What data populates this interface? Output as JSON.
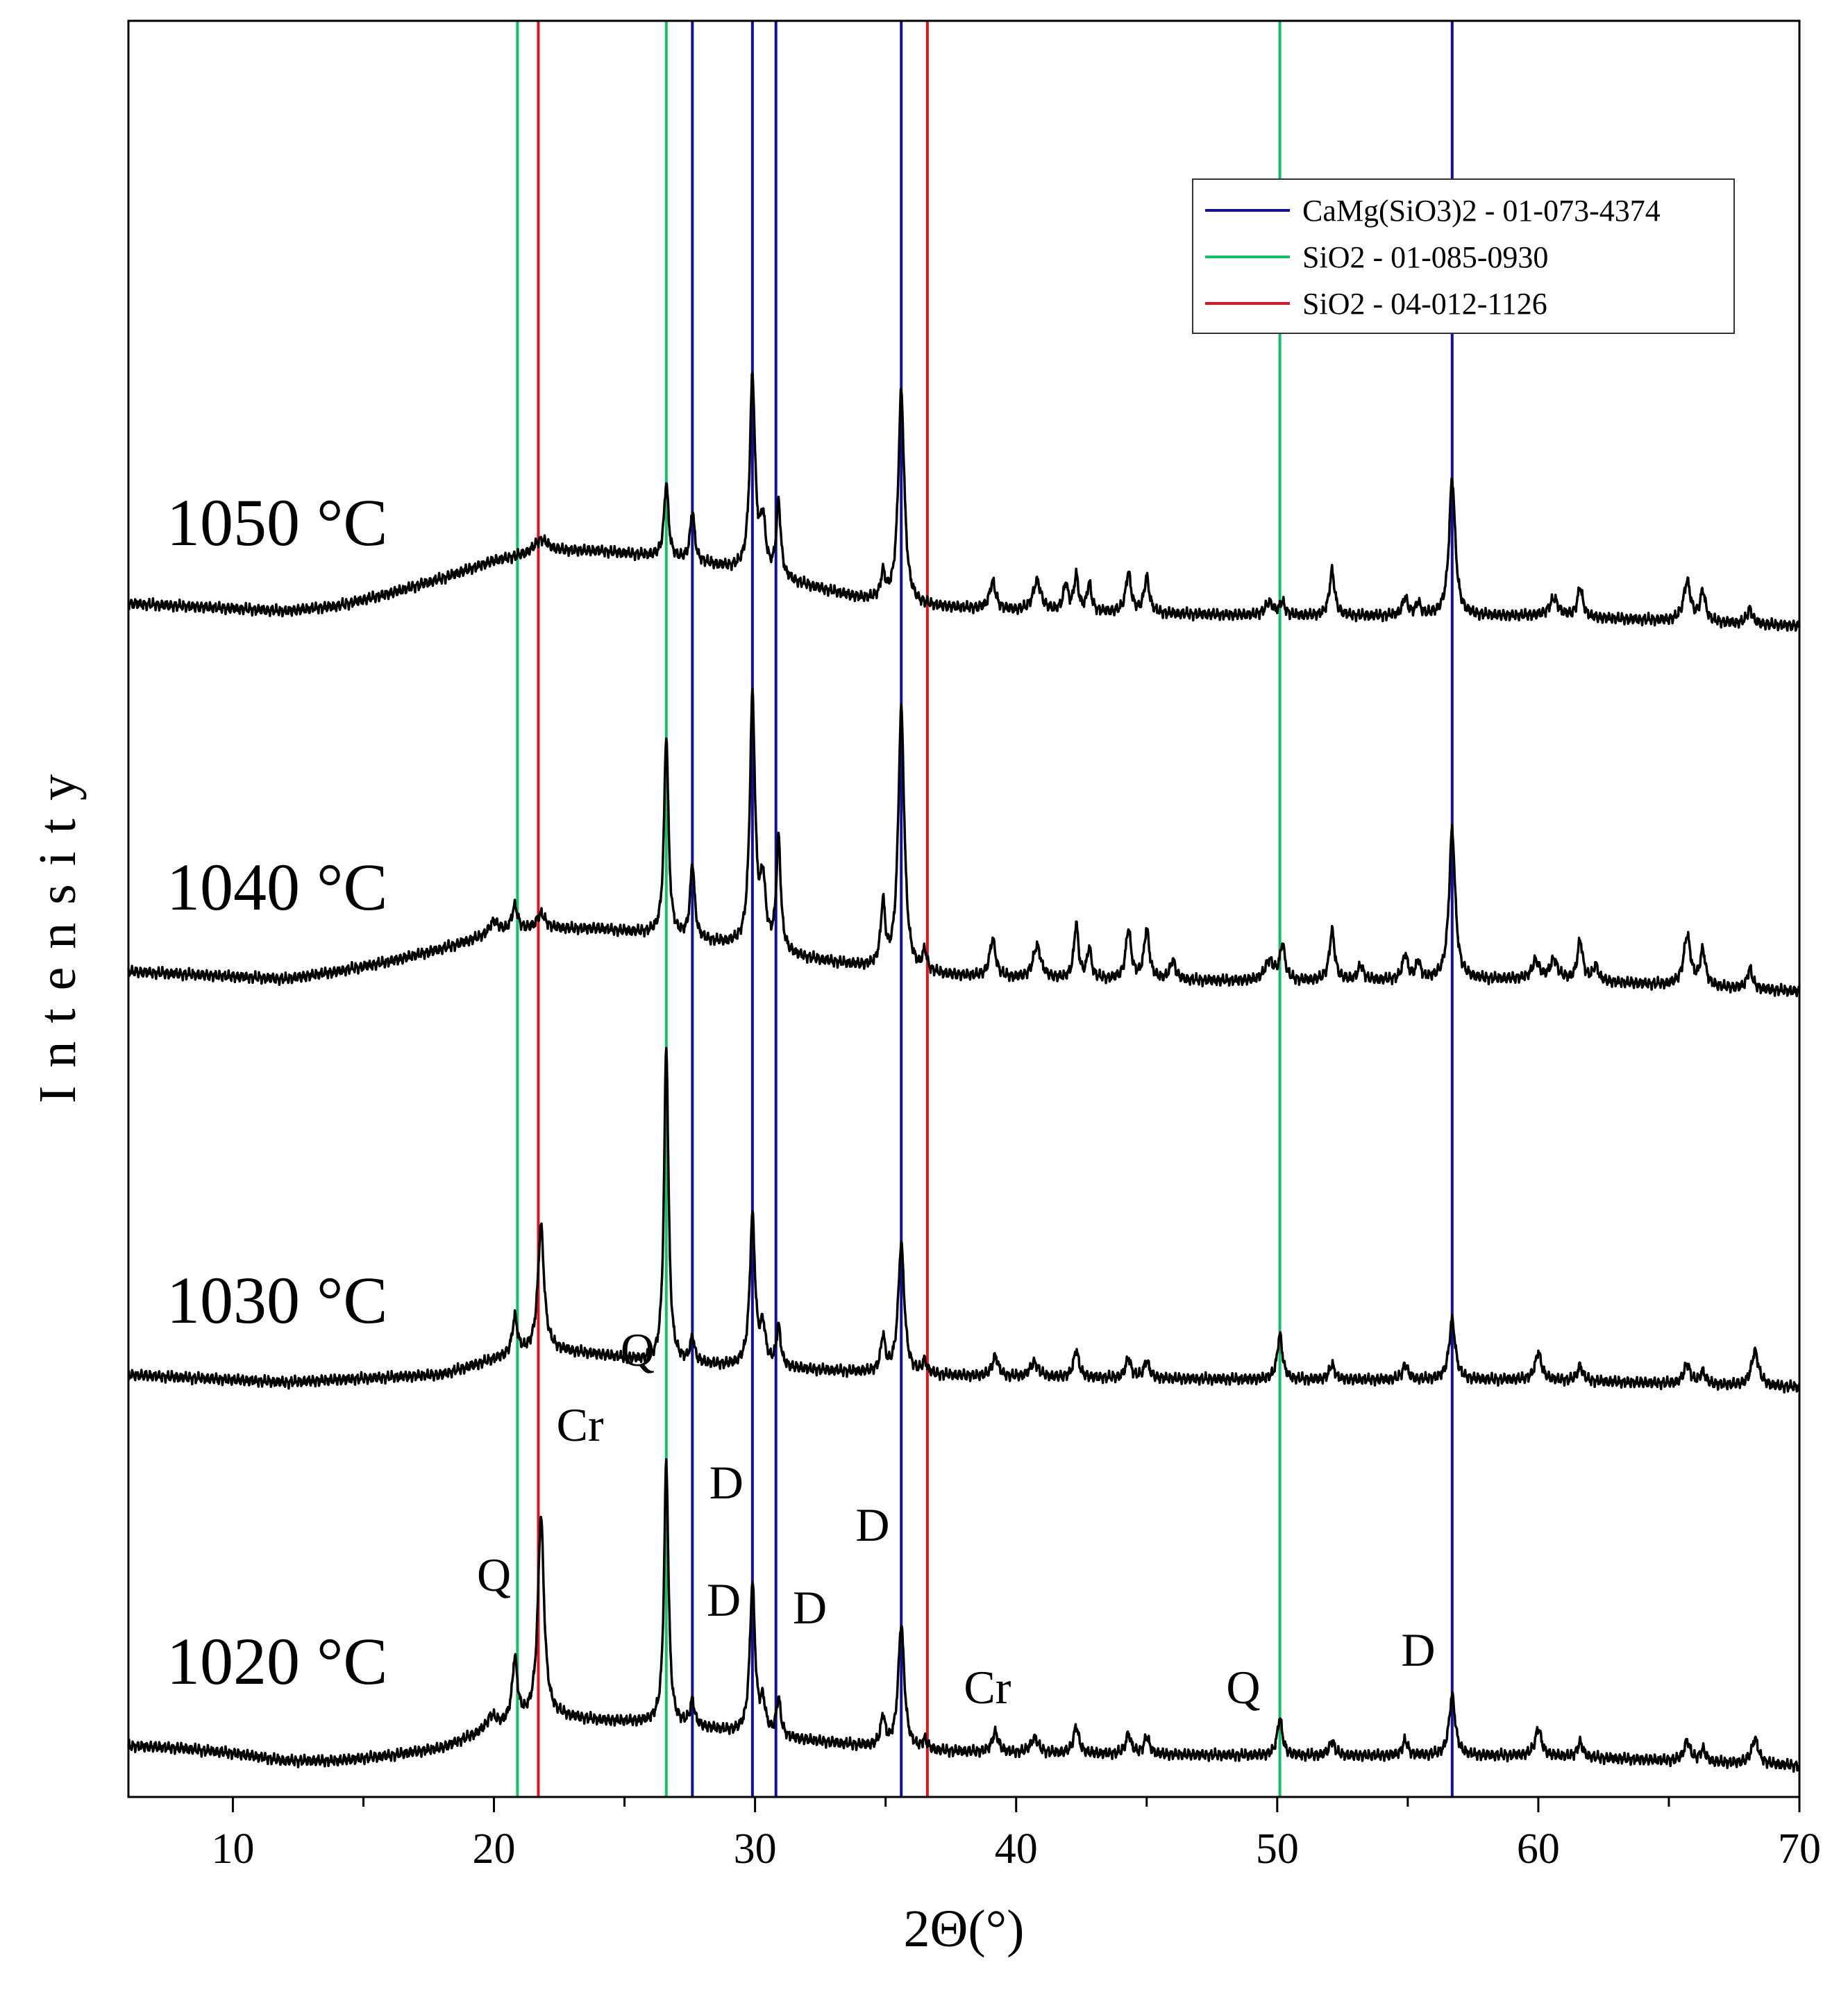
{
  "chart_data": {
    "type": "line",
    "title": "",
    "xlabel": "2Θ(°)",
    "ylabel": "Intensity",
    "xlim": [
      6,
      70
    ],
    "xticks": [
      10,
      20,
      30,
      40,
      50,
      60,
      70
    ],
    "legend": {
      "placement": "top-right",
      "entries": [
        {
          "label": "CaMg(SiO3)2 - 01-073-4374",
          "color": "#1010a0"
        },
        {
          "label": "SiO2 - 01-085-0930",
          "color": "#12c06a"
        },
        {
          "label": "SiO2 - 04-012-1126",
          "color": "#e0141e"
        }
      ]
    },
    "reference_lines": [
      {
        "phase": "CaMg(SiO3)2 - 01-073-4374",
        "color": "#1010a0",
        "positions": [
          27.6,
          29.9,
          30.8,
          35.6,
          56.7
        ]
      },
      {
        "phase": "SiO2 - 01-085-0930",
        "color": "#12c06a",
        "positions": [
          20.9,
          26.6,
          50.1
        ]
      },
      {
        "phase": "SiO2 - 04-012-1126",
        "color": "#e0141e",
        "positions": [
          21.7,
          36.6
        ]
      }
    ],
    "series": [
      {
        "name": "1050 °C",
        "label_text": "1050 °C",
        "baseline": [
          [
            6,
            0.03
          ],
          [
            8,
            0.02
          ],
          [
            10,
            0.01
          ],
          [
            12,
            0.0
          ],
          [
            14,
            0.02
          ],
          [
            16,
            0.07
          ],
          [
            18,
            0.13
          ],
          [
            20,
            0.2
          ],
          [
            22,
            0.24
          ],
          [
            24,
            0.24
          ],
          [
            26,
            0.22
          ],
          [
            28,
            0.19
          ],
          [
            30,
            0.15
          ],
          [
            32,
            0.1
          ],
          [
            34,
            0.05
          ],
          [
            36,
            0.02
          ],
          [
            40,
            0.0
          ],
          [
            50,
            -0.02
          ],
          [
            60,
            -0.02
          ],
          [
            70,
            -0.06
          ]
        ],
        "peaks": [
          [
            21.8,
            0.05,
            0.3
          ],
          [
            26.6,
            0.3,
            0.1
          ],
          [
            27.6,
            0.2,
            0.1
          ],
          [
            29.9,
            0.78,
            0.12
          ],
          [
            30.3,
            0.2,
            0.12
          ],
          [
            30.9,
            0.3,
            0.1
          ],
          [
            34.9,
            0.1,
            0.1
          ],
          [
            35.6,
            0.85,
            0.14
          ],
          [
            39.1,
            0.11,
            0.14
          ],
          [
            40.8,
            0.12,
            0.18
          ],
          [
            41.9,
            0.11,
            0.1
          ],
          [
            42.3,
            0.14,
            0.1
          ],
          [
            42.8,
            0.11,
            0.1
          ],
          [
            44.3,
            0.16,
            0.12
          ],
          [
            45.0,
            0.14,
            0.12
          ],
          [
            49.7,
            0.05,
            0.2
          ],
          [
            50.2,
            0.05,
            0.12
          ],
          [
            52.1,
            0.18,
            0.12
          ],
          [
            54.9,
            0.07,
            0.12
          ],
          [
            55.4,
            0.05,
            0.1
          ],
          [
            56.7,
            0.55,
            0.14
          ],
          [
            60.6,
            0.07,
            0.2
          ],
          [
            61.6,
            0.12,
            0.12
          ],
          [
            65.7,
            0.16,
            0.16
          ],
          [
            66.3,
            0.12,
            0.12
          ],
          [
            68.1,
            0.06,
            0.12
          ]
        ]
      },
      {
        "name": "1040 °C",
        "label_text": "1040 °C",
        "baseline": [
          [
            6,
            0.03
          ],
          [
            8,
            0.02
          ],
          [
            10,
            0.01
          ],
          [
            12,
            0.0
          ],
          [
            14,
            0.03
          ],
          [
            16,
            0.07
          ],
          [
            18,
            0.12
          ],
          [
            20,
            0.18
          ],
          [
            22,
            0.2
          ],
          [
            24,
            0.2
          ],
          [
            26,
            0.18
          ],
          [
            28,
            0.15
          ],
          [
            30,
            0.12
          ],
          [
            32,
            0.08
          ],
          [
            34,
            0.05
          ],
          [
            36,
            0.02
          ],
          [
            40,
            0.0
          ],
          [
            50,
            -0.01
          ],
          [
            60,
            0.0
          ],
          [
            70,
            -0.05
          ]
        ],
        "peaks": [
          [
            20.0,
            0.05,
            0.2
          ],
          [
            20.8,
            0.1,
            0.14
          ],
          [
            21.8,
            0.06,
            0.2
          ],
          [
            26.6,
            0.8,
            0.1
          ],
          [
            27.6,
            0.3,
            0.1
          ],
          [
            29.9,
            1.0,
            0.12
          ],
          [
            30.3,
            0.25,
            0.12
          ],
          [
            30.9,
            0.45,
            0.1
          ],
          [
            34.9,
            0.25,
            0.1
          ],
          [
            35.6,
            1.05,
            0.14
          ],
          [
            36.5,
            0.08,
            0.1
          ],
          [
            39.1,
            0.15,
            0.14
          ],
          [
            40.8,
            0.13,
            0.18
          ],
          [
            42.3,
            0.22,
            0.1
          ],
          [
            42.8,
            0.12,
            0.1
          ],
          [
            44.3,
            0.2,
            0.12
          ],
          [
            45.0,
            0.2,
            0.12
          ],
          [
            46.0,
            0.08,
            0.12
          ],
          [
            49.7,
            0.08,
            0.2
          ],
          [
            50.2,
            0.14,
            0.12
          ],
          [
            52.1,
            0.2,
            0.12
          ],
          [
            53.2,
            0.06,
            0.12
          ],
          [
            54.9,
            0.1,
            0.12
          ],
          [
            55.4,
            0.07,
            0.1
          ],
          [
            56.7,
            0.6,
            0.14
          ],
          [
            59.9,
            0.07,
            0.16
          ],
          [
            60.6,
            0.08,
            0.16
          ],
          [
            61.6,
            0.16,
            0.12
          ],
          [
            62.2,
            0.06,
            0.12
          ],
          [
            65.7,
            0.2,
            0.16
          ],
          [
            66.3,
            0.14,
            0.12
          ],
          [
            68.1,
            0.08,
            0.12
          ]
        ]
      },
      {
        "name": "1030 °C",
        "label_text": "1030 °C",
        "baseline": [
          [
            6,
            0.0
          ],
          [
            8,
            -0.01
          ],
          [
            10,
            -0.02
          ],
          [
            12,
            -0.03
          ],
          [
            14,
            -0.02
          ],
          [
            16,
            -0.01
          ],
          [
            18,
            0.0
          ],
          [
            20,
            0.06
          ],
          [
            22,
            0.1
          ],
          [
            24,
            0.08
          ],
          [
            26,
            0.05
          ],
          [
            28,
            0.04
          ],
          [
            30,
            0.03
          ],
          [
            32,
            0.02
          ],
          [
            34,
            0.01
          ],
          [
            36,
            0.0
          ],
          [
            40,
            -0.01
          ],
          [
            50,
            -0.02
          ],
          [
            60,
            -0.02
          ],
          [
            70,
            -0.05
          ]
        ],
        "peaks": [
          [
            20.8,
            0.15,
            0.12
          ],
          [
            21.8,
            0.5,
            0.14
          ],
          [
            26.6,
            1.27,
            0.1
          ],
          [
            27.6,
            0.1,
            0.1
          ],
          [
            29.9,
            0.6,
            0.12
          ],
          [
            30.3,
            0.15,
            0.12
          ],
          [
            30.9,
            0.16,
            0.1
          ],
          [
            34.9,
            0.14,
            0.1
          ],
          [
            35.6,
            0.52,
            0.14
          ],
          [
            36.5,
            0.05,
            0.1
          ],
          [
            39.2,
            0.08,
            0.14
          ],
          [
            40.7,
            0.06,
            0.18
          ],
          [
            42.3,
            0.11,
            0.12
          ],
          [
            44.3,
            0.08,
            0.12
          ],
          [
            45.0,
            0.07,
            0.12
          ],
          [
            50.1,
            0.18,
            0.12
          ],
          [
            52.1,
            0.06,
            0.12
          ],
          [
            54.9,
            0.06,
            0.12
          ],
          [
            56.7,
            0.24,
            0.14
          ],
          [
            60.0,
            0.11,
            0.14
          ],
          [
            61.6,
            0.06,
            0.12
          ],
          [
            65.7,
            0.08,
            0.14
          ],
          [
            66.3,
            0.05,
            0.12
          ],
          [
            68.3,
            0.14,
            0.16
          ]
        ]
      },
      {
        "name": "1020 °C",
        "label_text": "1020 °C",
        "baseline": [
          [
            6,
            0.03
          ],
          [
            8,
            0.02
          ],
          [
            10,
            0.0
          ],
          [
            12,
            -0.03
          ],
          [
            14,
            -0.03
          ],
          [
            16,
            -0.01
          ],
          [
            18,
            0.02
          ],
          [
            20,
            0.1
          ],
          [
            22,
            0.15
          ],
          [
            24,
            0.13
          ],
          [
            26,
            0.12
          ],
          [
            28,
            0.1
          ],
          [
            30,
            0.07
          ],
          [
            32,
            0.05
          ],
          [
            34,
            0.03
          ],
          [
            36,
            0.01
          ],
          [
            40,
            0.0
          ],
          [
            50,
            -0.01
          ],
          [
            60,
            -0.01
          ],
          [
            70,
            -0.05
          ]
        ],
        "peaks": [
          [
            19.9,
            0.05,
            0.2
          ],
          [
            20.8,
            0.25,
            0.12
          ],
          [
            21.8,
            0.8,
            0.14
          ],
          [
            26.6,
            1.05,
            0.1
          ],
          [
            27.6,
            0.1,
            0.1
          ],
          [
            29.9,
            0.6,
            0.12
          ],
          [
            30.3,
            0.12,
            0.12
          ],
          [
            30.9,
            0.15,
            0.1
          ],
          [
            34.9,
            0.12,
            0.1
          ],
          [
            35.6,
            0.5,
            0.14
          ],
          [
            36.5,
            0.04,
            0.1
          ],
          [
            39.2,
            0.08,
            0.14
          ],
          [
            40.7,
            0.06,
            0.18
          ],
          [
            42.3,
            0.11,
            0.12
          ],
          [
            44.3,
            0.08,
            0.12
          ],
          [
            45.0,
            0.07,
            0.12
          ],
          [
            50.1,
            0.15,
            0.12
          ],
          [
            52.1,
            0.06,
            0.12
          ],
          [
            54.9,
            0.06,
            0.12
          ],
          [
            56.7,
            0.24,
            0.14
          ],
          [
            60.0,
            0.11,
            0.14
          ],
          [
            61.6,
            0.06,
            0.12
          ],
          [
            65.7,
            0.08,
            0.14
          ],
          [
            66.3,
            0.05,
            0.12
          ],
          [
            68.3,
            0.1,
            0.16
          ]
        ]
      }
    ],
    "annotations": [
      {
        "text": "Q",
        "x": 25.5,
        "y": 1.55
      },
      {
        "text": "Cr",
        "x": 23.3,
        "y": 1.25
      },
      {
        "text": "Q",
        "x": 20.0,
        "y": 0.65
      },
      {
        "text": "D",
        "x": 28.9,
        "y": 1.02
      },
      {
        "text": "D",
        "x": 28.8,
        "y": 0.55
      },
      {
        "text": "D",
        "x": 32.1,
        "y": 0.52
      },
      {
        "text": "D",
        "x": 34.5,
        "y": 0.85
      },
      {
        "text": "Cr",
        "x": 38.9,
        "y": 0.2
      },
      {
        "text": "Q",
        "x": 48.7,
        "y": 0.2
      },
      {
        "text": "D",
        "x": 55.4,
        "y": 0.35
      }
    ]
  }
}
